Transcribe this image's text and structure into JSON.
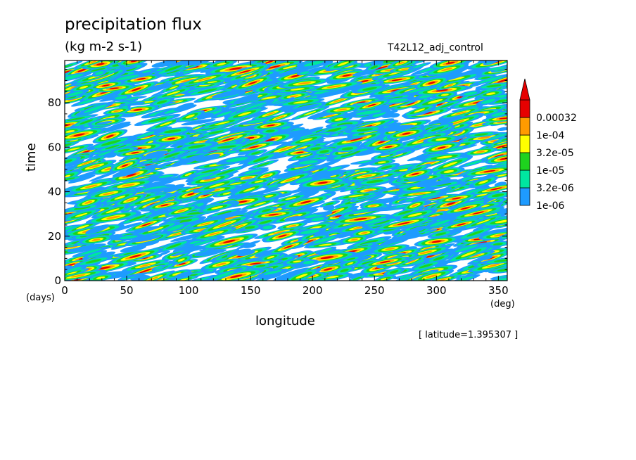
{
  "chart_data": {
    "type": "heatmap",
    "title": "precipitation flux",
    "units": "(kg m-2 s-1)",
    "run_name": "T42L12_adj_control",
    "xlabel": "longitude",
    "ylabel": "time",
    "x_unit_label": "(deg)",
    "y_unit_label": "(days)",
    "annotation": "[ latitude=1.395307 ]",
    "xlim": [
      0,
      357.1875
    ],
    "ylim": [
      0,
      99
    ],
    "x_ticks": [
      0,
      50,
      100,
      150,
      200,
      250,
      300,
      350
    ],
    "y_ticks": [
      0,
      20,
      40,
      60,
      80
    ],
    "colorbar": {
      "levels": [
        "1e-06",
        "3.2e-06",
        "1e-05",
        "3.2e-05",
        "1e-04",
        "0.00032"
      ],
      "level_values": [
        1e-06,
        3.2e-06,
        1e-05,
        3.2e-05,
        0.0001,
        0.00032
      ],
      "colors": [
        "#1e9bff",
        "#00e6a0",
        "#1ed21e",
        "#ffff00",
        "#ff9b00",
        "#e60000"
      ],
      "extend": "max"
    }
  }
}
